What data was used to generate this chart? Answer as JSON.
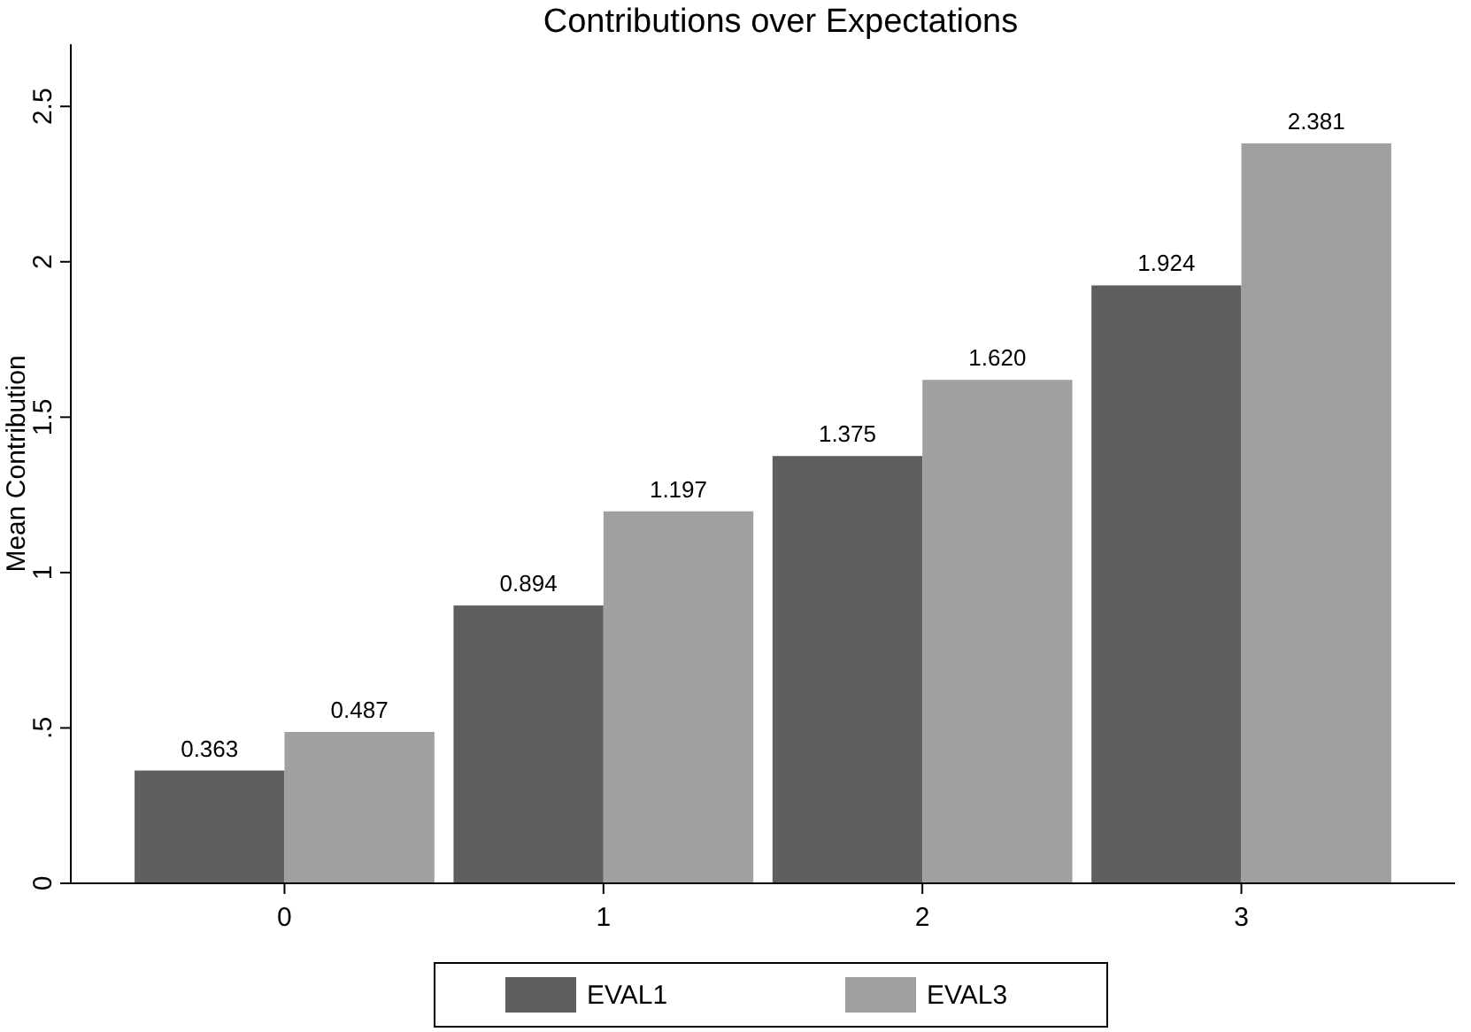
{
  "chart_data": {
    "type": "bar",
    "title": "Contributions over Expectations",
    "ylabel": "Mean Contribution",
    "categories": [
      "0",
      "1",
      "2",
      "3"
    ],
    "series": [
      {
        "name": "EVAL1",
        "color": "#5f5f5f",
        "values": [
          0.363,
          0.894,
          1.375,
          1.924
        ],
        "value_labels": [
          "0.363",
          "0.894",
          "1.375",
          "1.924"
        ]
      },
      {
        "name": "EVAL3",
        "color": "#a0a0a0",
        "values": [
          0.487,
          1.197,
          1.62,
          2.381
        ],
        "value_labels": [
          "0.487",
          "1.197",
          "1.620",
          "2.381"
        ]
      }
    ],
    "ylim": [
      0,
      2.7
    ],
    "yticks": [
      0,
      {
        "value": 0.5,
        "label": ".5"
      },
      1,
      1.5,
      2,
      2.5
    ],
    "grid": false,
    "legend": "bottom"
  }
}
